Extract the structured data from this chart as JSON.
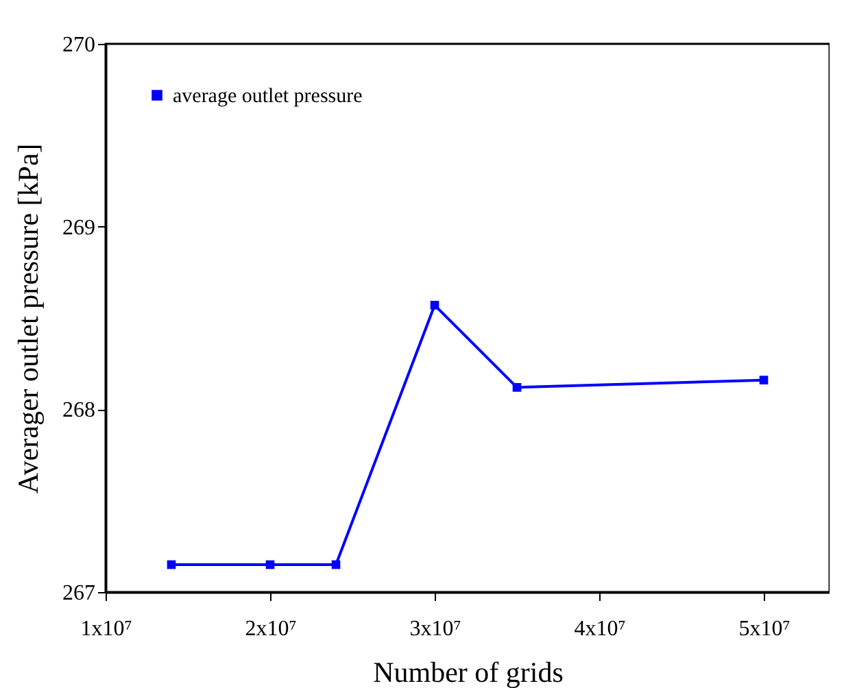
{
  "chart_data": {
    "type": "line",
    "xlabel": "Number of grids",
    "ylabel": "Averager outlet pressure [kPa]",
    "x": [
      14000000,
      20000000,
      24000000,
      30000000,
      35000000,
      50000000
    ],
    "series": [
      {
        "name": "average outlet pressure",
        "color": "#0000ff",
        "values": [
          267.15,
          267.15,
          267.15,
          268.57,
          268.12,
          268.16
        ]
      }
    ],
    "xlim": [
      10000000,
      54000000
    ],
    "xticks": [
      {
        "value": 10000000,
        "label": "1x10⁷"
      },
      {
        "value": 20000000,
        "label": "2x10⁷"
      },
      {
        "value": 30000000,
        "label": "3x10⁷"
      },
      {
        "value": 40000000,
        "label": "4x10⁷"
      },
      {
        "value": 50000000,
        "label": "5x10⁷"
      }
    ],
    "ylim": [
      267,
      270
    ],
    "yticks": [
      267,
      268,
      269,
      270
    ],
    "grid": false,
    "legend": "top left",
    "marker": "square",
    "line_style": "solid"
  }
}
